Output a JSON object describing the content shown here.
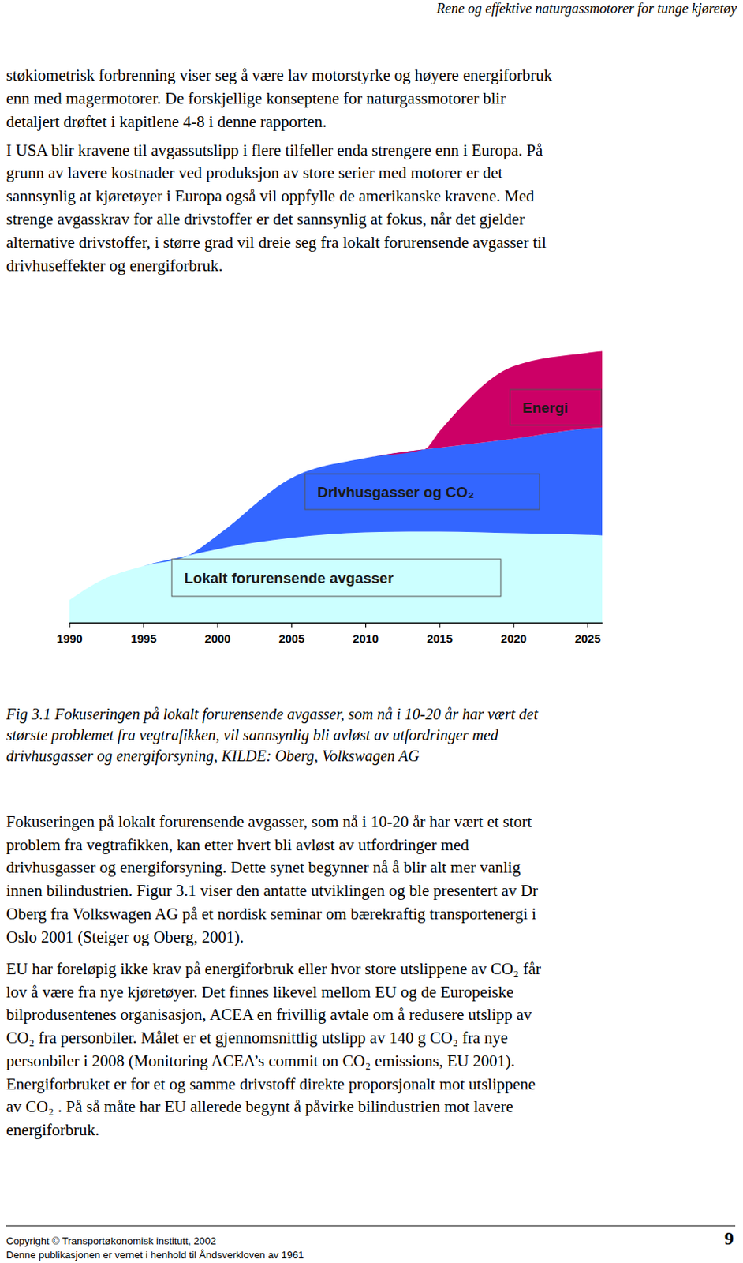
{
  "header": {
    "title": "Rene og effektive naturgassmotorer for tunge kjøretøy"
  },
  "paragraphs_top": [
    [
      "støkiometrisk forbrenning viser seg å være lav motorstyrke og høyere energiforbruk",
      "enn med magermotorer. De forskjellige konseptene for naturgassmotorer blir",
      "detaljert drøftet i kapitlene 4-8 i denne rapporten."
    ],
    [
      "I USA blir kravene til avgassutslipp i flere tilfeller enda strengere enn i Europa. På",
      "grunn av lavere kostnader ved produksjon av store serier med motorer er det",
      "sannsynlig at kjøretøyer i Europa også vil oppfylle de amerikanske kravene. Med",
      "strenge avgasskrav for alle drivstoffer er det sannsynlig at fokus, når det gjelder",
      "alternative drivstoffer, i større grad vil dreie seg fra lokalt forurensende avgasser til",
      "drivhuseffekter og energiforbruk."
    ]
  ],
  "chart_data": {
    "type": "area",
    "stacked": true,
    "tick_labels": "x",
    "x": [
      1990,
      1992,
      1995,
      1998,
      2000,
      2005,
      2010,
      2014,
      2015,
      2020,
      2025,
      2026
    ],
    "xlim": [
      1990,
      2026
    ],
    "xticks": [
      1990,
      1995,
      2000,
      2005,
      2010,
      2015,
      2020,
      2025
    ],
    "ylim": [
      0,
      100
    ],
    "series": [
      {
        "name": "Lokalt forurensende avgasser",
        "color": "#ccffff",
        "values": [
          8.2,
          15,
          20.6,
          24.4,
          26.8,
          30.9,
          32.9,
          33.2,
          33.2,
          32.6,
          32,
          31.8
        ]
      },
      {
        "name": "Drivhusgasser og CO₂",
        "color": "#3366ff",
        "values": [
          0,
          0,
          0,
          0,
          5,
          21.8,
          27.1,
          30,
          30.6,
          34.4,
          38.8,
          39.4
        ]
      },
      {
        "name": "Energi",
        "color": "#cc0066",
        "values": [
          0,
          0,
          0,
          0,
          0,
          0,
          0,
          0,
          5.9,
          26.5,
          27.6,
          27.8
        ]
      }
    ]
  },
  "caption": [
    "Fig 3.1 Fokuseringen på lokalt forurensende avgasser, som nå i 10-20 år har vært det",
    "største problemet fra vegtrafikken, vil sannsynlig bli avløst av utfordringer med",
    "drivhusgasser og energiforsyning, KILDE: Oberg, Volkswagen AG"
  ],
  "paragraphs_bottom": [
    [
      "Fokuseringen på lokalt forurensende avgasser, som nå i 10-20 år har vært et stort",
      "problem fra vegtrafikken, kan etter hvert bli avløst av utfordringer med",
      "drivhusgasser og energiforsyning. Dette synet begynner nå å blir alt mer vanlig",
      "innen bilindustrien. Figur 3.1 viser den antatte utviklingen og ble presentert av Dr",
      "Oberg fra Volkswagen AG på et nordisk seminar om bærekraftig transportenergi i",
      "Oslo 2001 (Steiger og Oberg, 2001)."
    ],
    [
      "EU har foreløpig ikke krav på energiforbruk eller hvor store utslippene av CO₂ får",
      "lov å være fra nye kjøretøyer. Det finnes likevel mellom EU og de Europeiske",
      "bilprodusentenes organisasjon, ACEA en frivillig avtale om å redusere utslipp av",
      "CO₂  fra personbiler. Målet er et gjennomsnittlig utslipp av 140 g CO₂ fra nye",
      "personbiler i 2008 (Monitoring ACEA’s commit on CO₂ emissions, EU 2001).",
      "Energiforbruket er for et og samme drivstoff direkte proporsjonalt mot utslippene",
      "av CO₂ . På så måte har EU allerede begynt å påvirke bilindustrien mot lavere",
      "energiforbruk."
    ]
  ],
  "footer": {
    "copyright": "Copyright © Transportøkonomisk institutt, 2002",
    "notice": "Denne publikasjonen er vernet i henhold til Åndsverkloven av 1961",
    "page": 9
  }
}
